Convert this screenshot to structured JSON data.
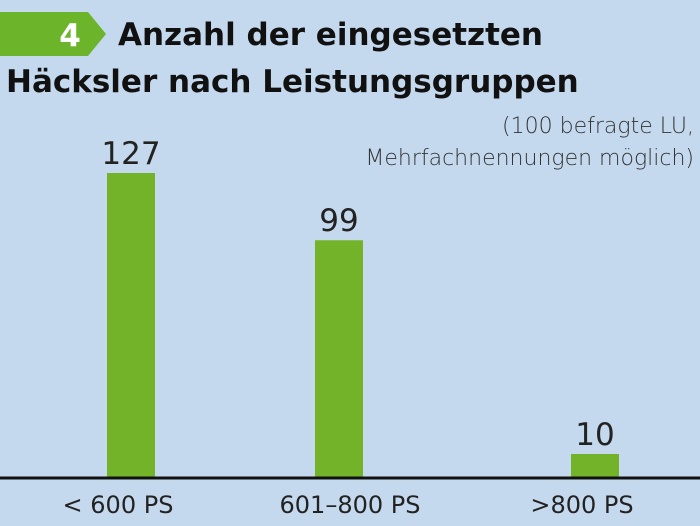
{
  "header": {
    "figure_number": "4",
    "title": "Anzahl der eingesetzten Häcksler nach Leistungsgruppen"
  },
  "note": {
    "line1": "(100 befragte LU,",
    "line2": "Mehrfachnennungen möglich)"
  },
  "colors": {
    "background": "#c5d9ee",
    "bar": "#72b32a",
    "badge": "#6cb52b",
    "axis": "#111111"
  },
  "chart_data": {
    "type": "bar",
    "title": "Anzahl der eingesetzten Häcksler nach Leistungsgruppen",
    "categories": [
      "< 600 PS",
      "601–800 PS",
      ">800 PS"
    ],
    "values": [
      127,
      99,
      10
    ],
    "xlabel": "",
    "ylabel": "",
    "ylim": [
      0,
      127
    ],
    "grid": false,
    "legend": "none",
    "data_labels": true
  }
}
